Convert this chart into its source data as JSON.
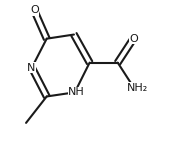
{
  "bg_color": "#ffffff",
  "line_color": "#1a1a1a",
  "line_width": 1.5,
  "font_size": 8.0,
  "dbo": 0.018,
  "figsize": [
    1.71,
    1.5
  ],
  "dpi": 100,
  "xlim": [
    0.0,
    1.0
  ],
  "ylim": [
    0.05,
    0.95
  ]
}
